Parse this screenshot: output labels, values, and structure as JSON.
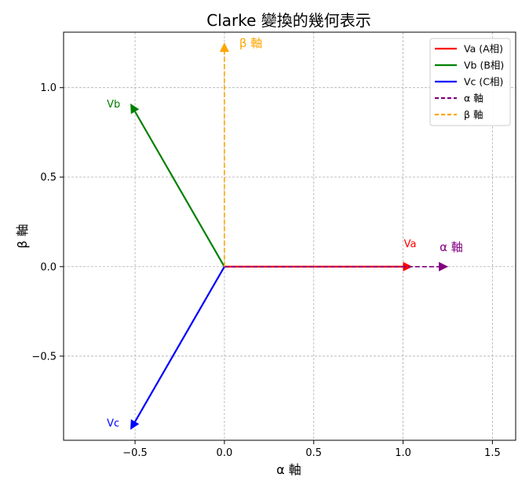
{
  "chart_data": {
    "type": "line",
    "title": "Clarke 變換的幾何表示",
    "xlabel": "α 軸",
    "ylabel": "β 軸",
    "xlim": [
      -0.9,
      1.63
    ],
    "ylim": [
      -0.97,
      1.31
    ],
    "xticks": [
      -0.5,
      0.0,
      0.5,
      1.0,
      1.5
    ],
    "yticks": [
      -0.5,
      0.0,
      0.5,
      1.0
    ],
    "xtick_labels": [
      "−0.5",
      "0.0",
      "0.5",
      "1.0",
      "1.5"
    ],
    "ytick_labels": [
      "−0.5",
      "0.0",
      "0.5",
      "1.0"
    ],
    "grid": true,
    "legend_position": "top-right",
    "series": [
      {
        "name": "Va (A相)",
        "color": "#ff0000",
        "style": "solid",
        "x": [
          0,
          1.0
        ],
        "y": [
          0,
          0
        ],
        "label": "Va"
      },
      {
        "name": "Vb (B相)",
        "color": "#008000",
        "style": "solid",
        "x": [
          0,
          -0.5
        ],
        "y": [
          0,
          0.866
        ],
        "label": "Vb"
      },
      {
        "name": "Vc (C相)",
        "color": "#0000ff",
        "style": "solid",
        "x": [
          0,
          -0.5
        ],
        "y": [
          0,
          -0.866
        ],
        "label": "Vc"
      },
      {
        "name": "α 軸",
        "color": "#800080",
        "style": "dashed",
        "x": [
          0,
          1.2
        ],
        "y": [
          0,
          0
        ],
        "label": "α 軸"
      },
      {
        "name": "β 軸",
        "color": "#ffa500",
        "style": "dashed",
        "x": [
          0,
          0
        ],
        "y": [
          0,
          1.2
        ],
        "label": "β 軸"
      }
    ]
  }
}
